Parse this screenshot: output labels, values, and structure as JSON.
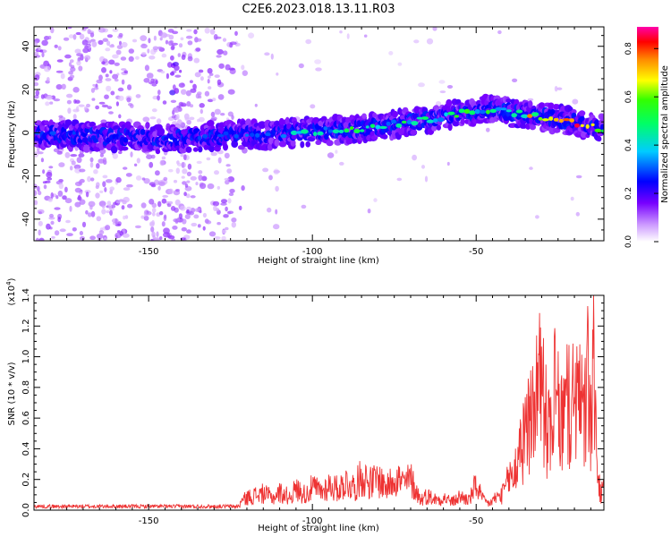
{
  "chart_data": [
    {
      "type": "heatmap",
      "title": "C2E6.2023.018.13.11.R03",
      "xlabel": "Height of straight line (km)",
      "ylabel": "Frequency (Hz)",
      "xlim": [
        -185,
        -11
      ],
      "ylim": [
        -50,
        49
      ],
      "xticks": [
        -150,
        -100,
        -50
      ],
      "xtick_labels": [
        "-150",
        "-100",
        "-50"
      ],
      "yticks": [
        -40,
        -20,
        0,
        20,
        40
      ],
      "ytick_labels": [
        "-40",
        "-20",
        "0",
        "20",
        "40"
      ],
      "colorbar": {
        "label": "Normalized spectral amplitude",
        "range": [
          0,
          0.89
        ],
        "ticks": [
          0.0,
          0.2,
          0.4,
          0.6,
          0.8
        ],
        "tick_labels": [
          "0.0",
          "0.2",
          "0.4",
          "0.6",
          "0.8"
        ],
        "colormap": "rainbow (white → violet → blue → cyan → green → yellow → red → magenta)"
      },
      "ridge": {
        "x": [
          -185,
          -175,
          -165,
          -155,
          -145,
          -135,
          -125,
          -115,
          -105,
          -95,
          -85,
          -75,
          -65,
          -55,
          -45,
          -38,
          -33,
          -28,
          -23,
          -18,
          -13
        ],
        "frequency": [
          -1,
          -1,
          -2,
          -2,
          -3,
          -2,
          -1,
          -1,
          0,
          1,
          2,
          4,
          6,
          9,
          11,
          9,
          8,
          7,
          6,
          4,
          2
        ],
        "amplitude": [
          0.3,
          0.3,
          0.25,
          0.25,
          0.25,
          0.3,
          0.3,
          0.35,
          0.45,
          0.5,
          0.6,
          0.55,
          0.5,
          0.55,
          0.55,
          0.6,
          0.75,
          0.8,
          0.85,
          0.89,
          0.6
        ]
      }
    },
    {
      "type": "line",
      "xlabel": "Height of straight line (km)",
      "ylabel": "SNR (10 * v/v)",
      "y_multiplier": "(x10⁴)",
      "y_multiplier_base": "(x10",
      "y_multiplier_exp": "4",
      "y_multiplier_close": ")",
      "xlim": [
        -185,
        -11
      ],
      "ylim": [
        0,
        1.4
      ],
      "xticks": [
        -150,
        -100,
        -50
      ],
      "xtick_labels": [
        "-150",
        "-100",
        "-50"
      ],
      "yticks": [
        0.0,
        0.2,
        0.4,
        0.6,
        0.8,
        1.0,
        1.2,
        1.4
      ],
      "ytick_labels": [
        "0.0",
        "0.2",
        "0.4",
        "0.6",
        "0.8",
        "1.0",
        "1.2",
        "1.4"
      ],
      "line_color": "#ee3333",
      "series": [
        {
          "name": "SNR",
          "x": [
            -185,
            -180,
            -175,
            -170,
            -165,
            -160,
            -155,
            -150,
            -145,
            -140,
            -135,
            -130,
            -125,
            -122,
            -120,
            -118,
            -115,
            -112,
            -110,
            -107,
            -105,
            -102,
            -100,
            -97,
            -95,
            -92,
            -90,
            -87,
            -85,
            -82,
            -80,
            -77,
            -75,
            -72,
            -70,
            -67,
            -65,
            -62,
            -60,
            -57,
            -55,
            -52,
            -50,
            -48,
            -46,
            -44,
            -42,
            -40,
            -38,
            -36,
            -34,
            -32,
            -30,
            -29,
            -28,
            -26,
            -24,
            -22,
            -21,
            -20,
            -19,
            -18,
            -17,
            -16,
            -15,
            -14,
            -13,
            -12,
            -11
          ],
          "values": [
            0.02,
            0.03,
            0.02,
            0.03,
            0.02,
            0.03,
            0.04,
            0.03,
            0.02,
            0.02,
            0.03,
            0.02,
            0.04,
            0.08,
            0.12,
            0.14,
            0.16,
            0.12,
            0.17,
            0.13,
            0.2,
            0.15,
            0.22,
            0.18,
            0.24,
            0.2,
            0.27,
            0.22,
            0.33,
            0.26,
            0.3,
            0.22,
            0.34,
            0.25,
            0.3,
            0.1,
            0.14,
            0.1,
            0.12,
            0.08,
            0.13,
            0.1,
            0.25,
            0.1,
            0.06,
            0.12,
            0.15,
            0.3,
            0.4,
            0.6,
            0.8,
            1.05,
            1.3,
            0.95,
            0.7,
            1.1,
            0.8,
            1.05,
            0.85,
            1.25,
            0.9,
            1.15,
            0.8,
            1.3,
            0.75,
            1.4,
            0.35,
            0.15,
            0.2
          ]
        }
      ]
    }
  ]
}
